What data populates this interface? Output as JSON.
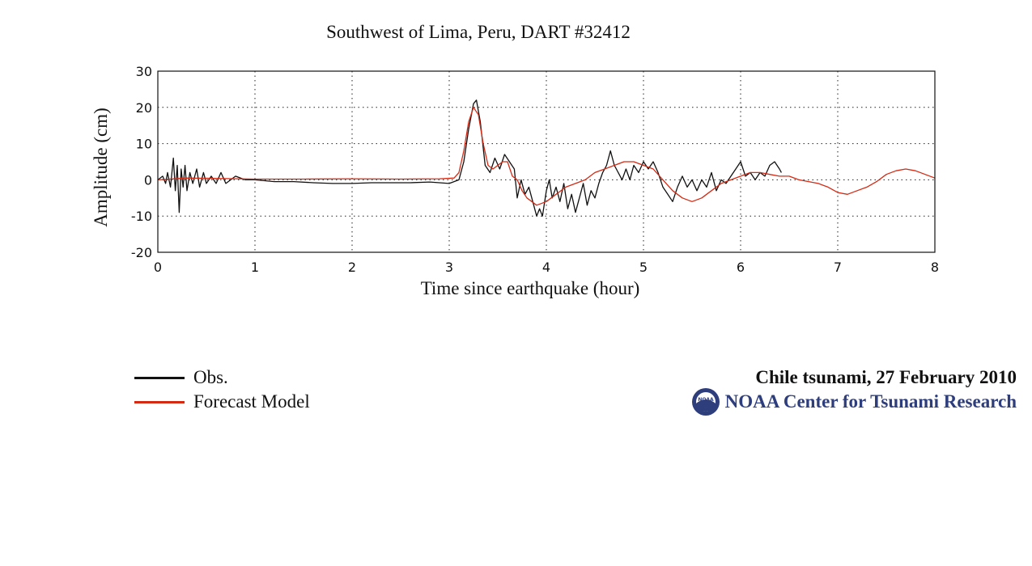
{
  "chart_data": {
    "type": "line",
    "title": "Southwest of Lima, Peru, DART #32412",
    "xlabel": "Time since earthquake (hour)",
    "ylabel": "Amplitude (cm)",
    "xlim": [
      0,
      8
    ],
    "ylim": [
      -20,
      30
    ],
    "xticks": [
      "0",
      "1",
      "2",
      "3",
      "4",
      "5",
      "6",
      "7",
      "8"
    ],
    "yticks": [
      "30",
      "20",
      "10",
      "0",
      "-10",
      "-20"
    ],
    "grid": true,
    "series": [
      {
        "name": "Obs.",
        "color": "#111111",
        "points": [
          [
            0.0,
            0
          ],
          [
            0.05,
            1
          ],
          [
            0.08,
            -1
          ],
          [
            0.1,
            2
          ],
          [
            0.13,
            -2
          ],
          [
            0.16,
            6
          ],
          [
            0.18,
            -3
          ],
          [
            0.2,
            4
          ],
          [
            0.22,
            -9
          ],
          [
            0.24,
            3
          ],
          [
            0.26,
            -2
          ],
          [
            0.28,
            4
          ],
          [
            0.3,
            -3
          ],
          [
            0.33,
            2
          ],
          [
            0.36,
            -1
          ],
          [
            0.4,
            3
          ],
          [
            0.43,
            -2
          ],
          [
            0.47,
            2
          ],
          [
            0.5,
            -1
          ],
          [
            0.55,
            1
          ],
          [
            0.6,
            -1
          ],
          [
            0.65,
            2
          ],
          [
            0.7,
            -1
          ],
          [
            0.8,
            1
          ],
          [
            0.9,
            0
          ],
          [
            1.0,
            0
          ],
          [
            1.2,
            -0.5
          ],
          [
            1.4,
            -0.5
          ],
          [
            1.6,
            -0.8
          ],
          [
            1.8,
            -1
          ],
          [
            2.0,
            -1
          ],
          [
            2.2,
            -0.8
          ],
          [
            2.4,
            -0.8
          ],
          [
            2.6,
            -0.8
          ],
          [
            2.8,
            -0.6
          ],
          [
            3.0,
            -1
          ],
          [
            3.1,
            0
          ],
          [
            3.15,
            5
          ],
          [
            3.2,
            14
          ],
          [
            3.25,
            21
          ],
          [
            3.28,
            22
          ],
          [
            3.32,
            16
          ],
          [
            3.37,
            4
          ],
          [
            3.42,
            2
          ],
          [
            3.47,
            6
          ],
          [
            3.52,
            3
          ],
          [
            3.57,
            7
          ],
          [
            3.62,
            5
          ],
          [
            3.67,
            3
          ],
          [
            3.7,
            -5
          ],
          [
            3.74,
            0
          ],
          [
            3.78,
            -4
          ],
          [
            3.82,
            -2
          ],
          [
            3.86,
            -6
          ],
          [
            3.9,
            -10
          ],
          [
            3.93,
            -8
          ],
          [
            3.96,
            -10
          ],
          [
            4.0,
            -3
          ],
          [
            4.03,
            0
          ],
          [
            4.06,
            -5
          ],
          [
            4.1,
            -2
          ],
          [
            4.14,
            -6
          ],
          [
            4.18,
            -1
          ],
          [
            4.22,
            -8
          ],
          [
            4.26,
            -4
          ],
          [
            4.3,
            -9
          ],
          [
            4.34,
            -5
          ],
          [
            4.38,
            -1
          ],
          [
            4.42,
            -7
          ],
          [
            4.46,
            -3
          ],
          [
            4.5,
            -5
          ],
          [
            4.54,
            -1
          ],
          [
            4.58,
            2
          ],
          [
            4.62,
            4
          ],
          [
            4.66,
            8
          ],
          [
            4.7,
            4
          ],
          [
            4.74,
            2
          ],
          [
            4.78,
            0
          ],
          [
            4.82,
            3
          ],
          [
            4.86,
            0
          ],
          [
            4.9,
            4
          ],
          [
            4.95,
            2
          ],
          [
            5.0,
            5
          ],
          [
            5.05,
            3
          ],
          [
            5.1,
            5
          ],
          [
            5.15,
            2
          ],
          [
            5.2,
            -2
          ],
          [
            5.25,
            -4
          ],
          [
            5.3,
            -6
          ],
          [
            5.35,
            -2
          ],
          [
            5.4,
            1
          ],
          [
            5.45,
            -2
          ],
          [
            5.5,
            0
          ],
          [
            5.55,
            -3
          ],
          [
            5.6,
            0
          ],
          [
            5.65,
            -2
          ],
          [
            5.7,
            2
          ],
          [
            5.75,
            -3
          ],
          [
            5.8,
            0
          ],
          [
            5.85,
            -1
          ],
          [
            5.9,
            1
          ],
          [
            5.95,
            3
          ],
          [
            6.0,
            5
          ],
          [
            6.05,
            1
          ],
          [
            6.1,
            2
          ],
          [
            6.15,
            0
          ],
          [
            6.2,
            2
          ],
          [
            6.25,
            1
          ],
          [
            6.3,
            4
          ],
          [
            6.35,
            5
          ],
          [
            6.4,
            3
          ],
          [
            6.42,
            2
          ]
        ]
      },
      {
        "name": "Forecast Model",
        "color": "#d42a14",
        "points": [
          [
            0.0,
            0
          ],
          [
            0.3,
            0.5
          ],
          [
            0.6,
            0.4
          ],
          [
            1.0,
            0.2
          ],
          [
            1.5,
            0.2
          ],
          [
            2.0,
            0.3
          ],
          [
            2.5,
            0.2
          ],
          [
            2.9,
            0.3
          ],
          [
            3.05,
            0.5
          ],
          [
            3.1,
            2
          ],
          [
            3.15,
            8
          ],
          [
            3.2,
            16
          ],
          [
            3.25,
            20
          ],
          [
            3.3,
            18
          ],
          [
            3.35,
            10
          ],
          [
            3.4,
            4
          ],
          [
            3.45,
            3
          ],
          [
            3.5,
            4
          ],
          [
            3.55,
            5
          ],
          [
            3.6,
            5
          ],
          [
            3.65,
            1
          ],
          [
            3.7,
            0
          ],
          [
            3.75,
            -3
          ],
          [
            3.8,
            -5
          ],
          [
            3.9,
            -7
          ],
          [
            4.0,
            -6
          ],
          [
            4.1,
            -4
          ],
          [
            4.2,
            -2
          ],
          [
            4.3,
            -1
          ],
          [
            4.4,
            0
          ],
          [
            4.5,
            2
          ],
          [
            4.6,
            3
          ],
          [
            4.7,
            4
          ],
          [
            4.8,
            5
          ],
          [
            4.9,
            5
          ],
          [
            5.0,
            4
          ],
          [
            5.1,
            3
          ],
          [
            5.2,
            0
          ],
          [
            5.3,
            -3
          ],
          [
            5.4,
            -5
          ],
          [
            5.5,
            -6
          ],
          [
            5.6,
            -5
          ],
          [
            5.7,
            -3
          ],
          [
            5.8,
            -1
          ],
          [
            5.9,
            0
          ],
          [
            6.0,
            1
          ],
          [
            6.1,
            2
          ],
          [
            6.2,
            2
          ],
          [
            6.3,
            1.5
          ],
          [
            6.4,
            1
          ],
          [
            6.5,
            1
          ],
          [
            6.6,
            0
          ],
          [
            6.7,
            -0.5
          ],
          [
            6.8,
            -1
          ],
          [
            6.9,
            -2
          ],
          [
            7.0,
            -3.5
          ],
          [
            7.1,
            -4
          ],
          [
            7.2,
            -3
          ],
          [
            7.3,
            -2
          ],
          [
            7.4,
            -0.5
          ],
          [
            7.5,
            1.5
          ],
          [
            7.6,
            2.5
          ],
          [
            7.7,
            3
          ],
          [
            7.8,
            2.5
          ],
          [
            7.9,
            1.5
          ],
          [
            8.0,
            0.5
          ]
        ]
      }
    ]
  },
  "legend": {
    "obs_label": "Obs.",
    "model_label": "Forecast Model",
    "obs_color": "#111111",
    "model_color": "#d42a14"
  },
  "credit": {
    "event": "Chile tsunami, 27 February 2010",
    "organization": "NOAA Center for Tsunami Research",
    "logo_icon": "noaa-logo-icon",
    "logo_text": "NOAA",
    "org_color": "#2e3d7c"
  }
}
